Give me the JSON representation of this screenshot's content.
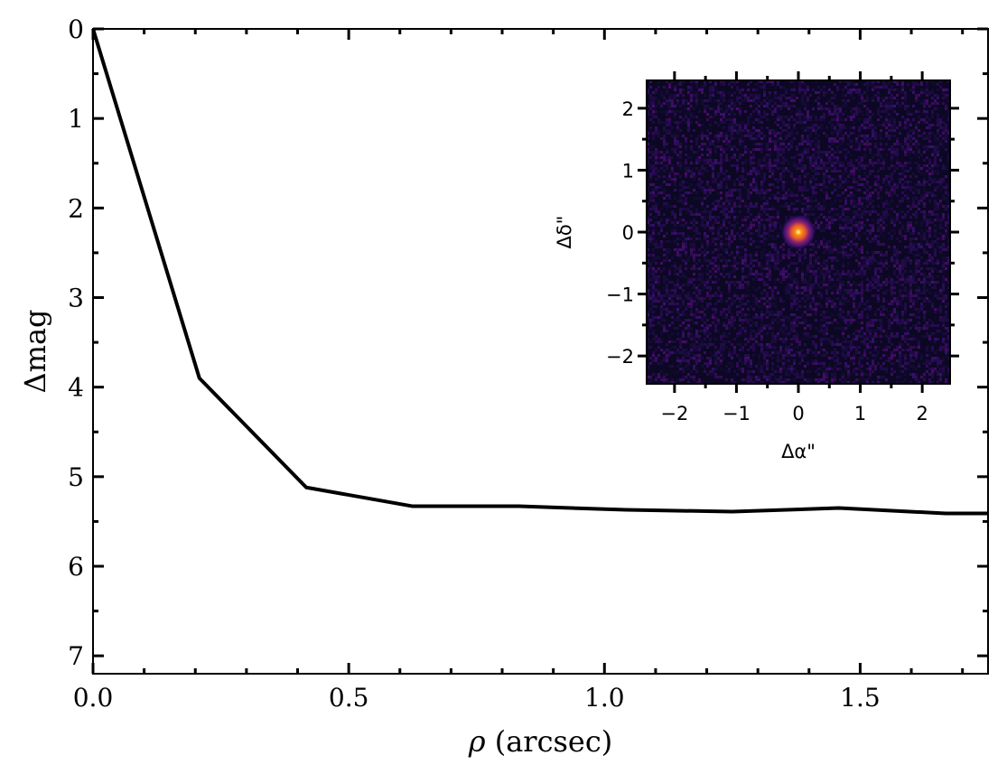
{
  "chart_data": [
    {
      "type": "line",
      "xlabel_symbol": "ρ",
      "xlabel_text": " (arcsec)",
      "ylabel": "Δmag",
      "xlim": [
        0.0,
        1.75
      ],
      "ylim": [
        7.2,
        0
      ],
      "y_inverted": true,
      "xticks": [
        0.0,
        0.5,
        1.0,
        1.5
      ],
      "xtick_labels": [
        "0.0",
        "0.5",
        "1.0",
        "1.5"
      ],
      "yticks": [
        0,
        1,
        2,
        3,
        4,
        5,
        6,
        7
      ],
      "ytick_labels": [
        "0",
        "1",
        "2",
        "3",
        "4",
        "5",
        "6",
        "7"
      ],
      "grid": false,
      "series": [
        {
          "color": "#000000",
          "x": [
            0.0,
            0.208,
            0.417,
            0.625,
            0.833,
            1.042,
            1.25,
            1.458,
            1.667,
            1.75
          ],
          "y": [
            0.0,
            3.9,
            5.12,
            5.33,
            5.33,
            5.37,
            5.39,
            5.35,
            5.41,
            5.41
          ]
        }
      ]
    },
    {
      "type": "heatmap",
      "colormap": "inferno",
      "xlabel": "Δα\"",
      "ylabel": "Δδ\"",
      "xlim": [
        -2.45,
        2.45
      ],
      "ylim": [
        -2.45,
        2.45
      ],
      "xticks": [
        -2,
        -1,
        0,
        1,
        2
      ],
      "xtick_labels": [
        "−2",
        "−1",
        "0",
        "1",
        "2"
      ],
      "yticks": [
        -2,
        -1,
        0,
        1,
        2
      ],
      "ytick_labels": [
        "−2",
        "−1",
        "0",
        "1",
        "2"
      ],
      "source_position": [
        0,
        0
      ]
    }
  ]
}
